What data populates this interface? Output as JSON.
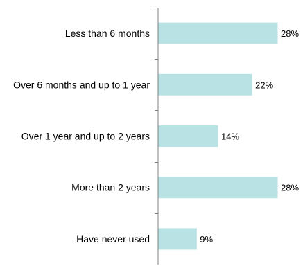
{
  "chart_data": {
    "type": "bar",
    "orientation": "horizontal",
    "categories": [
      "Less than 6 months",
      "Over 6 months and up to 1 year",
      "Over 1 year and up to 2 years",
      "More than 2 years",
      "Have never used"
    ],
    "values": [
      28,
      22,
      14,
      28,
      9
    ],
    "value_labels": [
      "28%",
      "22%",
      "14%",
      "28%",
      "9%"
    ],
    "unit": "%",
    "xlim": [
      0,
      28
    ],
    "grid": false,
    "legend": "none",
    "bar_color": "#b9e2e4",
    "axis_color": "#808080"
  }
}
